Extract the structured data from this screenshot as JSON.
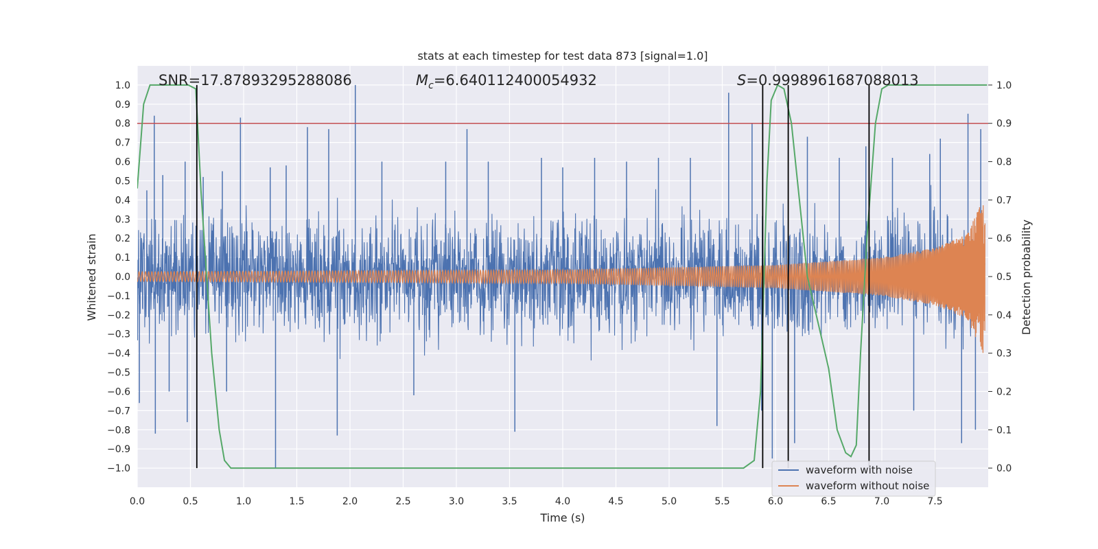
{
  "chart_data": {
    "type": "line",
    "title": "stats at each timestep for test data 873 [signal=1.0]",
    "xlabel": "Time (s)",
    "ylabel_left": "Whitened strain",
    "ylabel_right": "Detection probability",
    "xlim": [
      0.0,
      8.0
    ],
    "ylim_left": [
      -1.1,
      1.1
    ],
    "ylim_right": [
      -0.05,
      1.05
    ],
    "x_ticks": [
      0.0,
      0.5,
      1.0,
      1.5,
      2.0,
      2.5,
      3.0,
      3.5,
      4.0,
      4.5,
      5.0,
      5.5,
      6.0,
      6.5,
      7.0,
      7.5
    ],
    "x_tick_labels": [
      "0.0",
      "0.5",
      "1.0",
      "1.5",
      "2.0",
      "2.5",
      "3.0",
      "3.5",
      "4.0",
      "4.5",
      "5.0",
      "5.5",
      "6.0",
      "6.5",
      "7.0",
      "7.5"
    ],
    "y_left_ticks": [
      1.0,
      0.9,
      0.8,
      0.7,
      0.6,
      0.5,
      0.4,
      0.3,
      0.2,
      0.1,
      0.0,
      -0.1,
      -0.2,
      -0.3,
      -0.4,
      -0.5,
      -0.6,
      -0.7,
      -0.8,
      -0.9,
      -1.0
    ],
    "y_left_tick_labels": [
      "1.0",
      "0.9",
      "0.8",
      "0.7",
      "0.6",
      "0.5",
      "0.4",
      "0.3",
      "0.2",
      "0.1",
      "0.0",
      "−0.1",
      "−0.2",
      "−0.3",
      "−0.4",
      "−0.5",
      "−0.6",
      "−0.7",
      "−0.8",
      "−0.9",
      "−1.0"
    ],
    "y_right_ticks": [
      1.0,
      0.9,
      0.8,
      0.7,
      0.6,
      0.5,
      0.4,
      0.3,
      0.2,
      0.1,
      0.0
    ],
    "y_right_tick_labels": [
      "1.0",
      "0.9",
      "0.8",
      "0.7",
      "0.6",
      "0.5",
      "0.4",
      "0.3",
      "0.2",
      "0.1",
      "0.0"
    ],
    "grid": true,
    "legend_position": "lower-right",
    "annotations": {
      "snr": "SNR=17.87893295288086",
      "mc_symbol": "M",
      "mc_subscript": "c",
      "mc_value": "=6.640112400054932",
      "s_symbol": "S",
      "s_value": "=0.9998961687088013"
    },
    "series": [
      {
        "name": "waveform with noise",
        "color": "#4c72b0",
        "axis": "left",
        "x_range": [
          0.0,
          7.97
        ],
        "typical_envelope": 0.37,
        "spikes": [
          {
            "x": 0.02,
            "y": -0.66
          },
          {
            "x": 0.09,
            "y": 0.45
          },
          {
            "x": 0.16,
            "y": 0.84
          },
          {
            "x": 0.17,
            "y": -0.82
          },
          {
            "x": 0.24,
            "y": 0.53
          },
          {
            "x": 0.3,
            "y": -0.6
          },
          {
            "x": 0.45,
            "y": 0.6
          },
          {
            "x": 0.47,
            "y": -0.76
          },
          {
            "x": 0.62,
            "y": 0.52
          },
          {
            "x": 0.8,
            "y": 0.55
          },
          {
            "x": 0.84,
            "y": -0.6
          },
          {
            "x": 0.97,
            "y": 0.83
          },
          {
            "x": 1.25,
            "y": 0.57
          },
          {
            "x": 1.3,
            "y": -1.0
          },
          {
            "x": 1.4,
            "y": 0.58
          },
          {
            "x": 1.6,
            "y": 0.78
          },
          {
            "x": 1.8,
            "y": 0.77
          },
          {
            "x": 1.88,
            "y": -0.83
          },
          {
            "x": 2.05,
            "y": 1.0
          },
          {
            "x": 2.3,
            "y": 0.6
          },
          {
            "x": 2.6,
            "y": -0.62
          },
          {
            "x": 2.9,
            "y": 0.6
          },
          {
            "x": 3.1,
            "y": 0.77
          },
          {
            "x": 3.3,
            "y": 0.6
          },
          {
            "x": 3.55,
            "y": -0.81
          },
          {
            "x": 3.8,
            "y": 0.62
          },
          {
            "x": 4.0,
            "y": 0.57
          },
          {
            "x": 4.3,
            "y": 0.62
          },
          {
            "x": 4.6,
            "y": 0.6
          },
          {
            "x": 4.9,
            "y": 0.62
          },
          {
            "x": 5.2,
            "y": 0.62
          },
          {
            "x": 5.45,
            "y": -0.78
          },
          {
            "x": 5.56,
            "y": 0.96
          },
          {
            "x": 5.78,
            "y": 0.8
          },
          {
            "x": 5.87,
            "y": -0.7
          },
          {
            "x": 5.97,
            "y": -0.95
          },
          {
            "x": 6.18,
            "y": -0.87
          },
          {
            "x": 6.3,
            "y": 0.73
          },
          {
            "x": 6.6,
            "y": 0.62
          },
          {
            "x": 6.85,
            "y": 0.68
          },
          {
            "x": 7.1,
            "y": 0.62
          },
          {
            "x": 7.3,
            "y": -0.7
          },
          {
            "x": 7.45,
            "y": 0.64
          },
          {
            "x": 7.55,
            "y": 0.72
          },
          {
            "x": 7.75,
            "y": -0.87
          },
          {
            "x": 7.81,
            "y": 0.85
          },
          {
            "x": 7.88,
            "y": -0.8
          },
          {
            "x": 7.93,
            "y": 0.77
          }
        ]
      },
      {
        "name": "waveform without noise",
        "color": "#dd8452",
        "axis": "left",
        "x_range": [
          0.0,
          7.97
        ],
        "description_points": [
          {
            "t": 0.0,
            "amplitude": 0.025
          },
          {
            "t": 4.0,
            "amplitude": 0.035
          },
          {
            "t": 6.0,
            "amplitude": 0.06
          },
          {
            "t": 7.0,
            "amplitude": 0.1
          },
          {
            "t": 7.5,
            "amplitude": 0.15
          },
          {
            "t": 7.8,
            "amplitude": 0.22
          },
          {
            "t": 7.95,
            "amplitude": 0.4
          }
        ]
      },
      {
        "name": "detection probability",
        "color": "#55a868",
        "axis": "right",
        "points": [
          [
            0.0,
            0.73
          ],
          [
            0.06,
            0.95
          ],
          [
            0.12,
            1.0
          ],
          [
            0.3,
            1.0
          ],
          [
            0.48,
            1.0
          ],
          [
            0.55,
            0.99
          ],
          [
            0.6,
            0.72
          ],
          [
            0.7,
            0.3
          ],
          [
            0.77,
            0.1
          ],
          [
            0.82,
            0.02
          ],
          [
            0.88,
            0.0
          ],
          [
            1.5,
            0.0
          ],
          [
            3.0,
            0.0
          ],
          [
            4.5,
            0.0
          ],
          [
            5.7,
            0.0
          ],
          [
            5.8,
            0.02
          ],
          [
            5.86,
            0.2
          ],
          [
            5.92,
            0.75
          ],
          [
            5.96,
            0.96
          ],
          [
            6.02,
            1.0
          ],
          [
            6.08,
            0.99
          ],
          [
            6.15,
            0.9
          ],
          [
            6.3,
            0.5
          ],
          [
            6.4,
            0.38
          ],
          [
            6.5,
            0.26
          ],
          [
            6.58,
            0.1
          ],
          [
            6.66,
            0.04
          ],
          [
            6.71,
            0.03
          ],
          [
            6.76,
            0.06
          ],
          [
            6.8,
            0.3
          ],
          [
            6.86,
            0.6
          ],
          [
            6.94,
            0.9
          ],
          [
            7.0,
            0.99
          ],
          [
            7.06,
            1.0
          ],
          [
            7.5,
            1.0
          ],
          [
            7.99,
            1.0
          ]
        ]
      }
    ],
    "threshold_line": {
      "axis": "right",
      "y": 0.9,
      "color": "#c44e52"
    },
    "vertical_markers": [
      {
        "x": 0.56,
        "color": "#000000"
      },
      {
        "x": 5.88,
        "color": "#000000"
      },
      {
        "x": 6.12,
        "color": "#000000"
      },
      {
        "x": 6.88,
        "color": "#000000"
      }
    ]
  }
}
